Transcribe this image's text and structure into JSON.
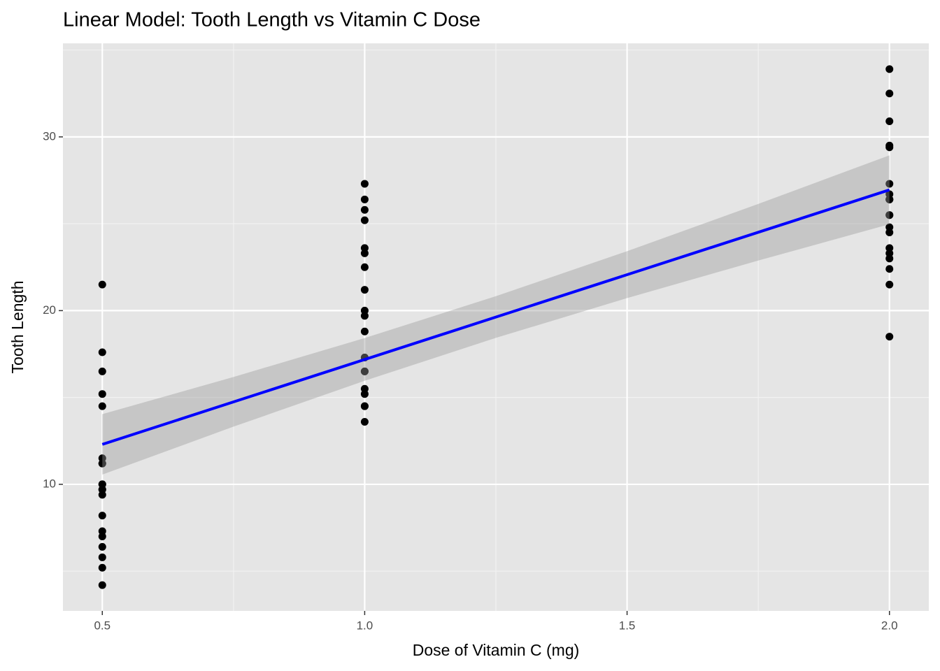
{
  "chart_data": {
    "type": "scatter",
    "title": "Linear Model: Tooth Length vs Vitamin C Dose",
    "x_label": "Dose of Vitamin C (mg)",
    "y_label": "Tooth Length",
    "x": [
      0.5,
      0.5,
      0.5,
      0.5,
      0.5,
      0.5,
      0.5,
      0.5,
      0.5,
      0.5,
      1,
      1,
      1,
      1,
      1,
      1,
      1,
      1,
      1,
      1,
      2,
      2,
      2,
      2,
      2,
      2,
      2,
      2,
      2,
      2,
      0.5,
      0.5,
      0.5,
      0.5,
      0.5,
      0.5,
      0.5,
      0.5,
      0.5,
      0.5,
      1,
      1,
      1,
      1,
      1,
      1,
      1,
      1,
      1,
      1,
      2,
      2,
      2,
      2,
      2,
      2,
      2,
      2,
      2,
      2
    ],
    "values": [
      4.2,
      11.5,
      7.3,
      5.8,
      6.4,
      10,
      11.2,
      11.2,
      5.2,
      7,
      16.5,
      16.5,
      15.2,
      17.3,
      22.5,
      17.3,
      13.6,
      14.5,
      18.8,
      15.5,
      23.6,
      18.5,
      33.9,
      25.5,
      26.4,
      32.5,
      26.7,
      21.5,
      23.3,
      29.5,
      15.2,
      21.5,
      17.6,
      9.7,
      14.5,
      10,
      8.2,
      9.4,
      16.5,
      9.7,
      19.7,
      23.3,
      23.6,
      26.4,
      20,
      25.2,
      25.8,
      21.2,
      14.5,
      27.3,
      25.5,
      26.4,
      22.4,
      24.5,
      24.8,
      30.9,
      26.4,
      27.3,
      29.4,
      23
    ],
    "color": "#000000",
    "fit": {
      "color": "#0000ff",
      "band_color": "#999999",
      "x": [
        0.5,
        0.75,
        1.0,
        1.25,
        1.5,
        1.75,
        2.0
      ],
      "values": [
        12.3,
        14.745,
        17.186,
        19.627,
        22.068,
        24.509,
        26.95
      ],
      "lower": [
        10.56,
        13.32,
        15.96,
        18.43,
        20.72,
        22.88,
        24.97
      ],
      "upper": [
        14.04,
        16.18,
        18.42,
        20.83,
        23.42,
        26.14,
        28.94
      ]
    },
    "xlim": [
      0.425,
      2.075
    ],
    "ylim": [
      2.715,
      35.385
    ],
    "xticks": [
      {
        "value": 0.5,
        "label": "0.5"
      },
      {
        "value": 1,
        "label": "1.0"
      },
      {
        "value": 1.5,
        "label": "1.5"
      },
      {
        "value": 2,
        "label": "2.0"
      }
    ],
    "yticks": [
      10,
      20,
      30
    ],
    "x_minor_breaks": [
      0.75,
      1.25,
      1.75
    ],
    "y_minor_breaks": [
      5,
      15,
      25,
      35
    ],
    "grid": true
  }
}
